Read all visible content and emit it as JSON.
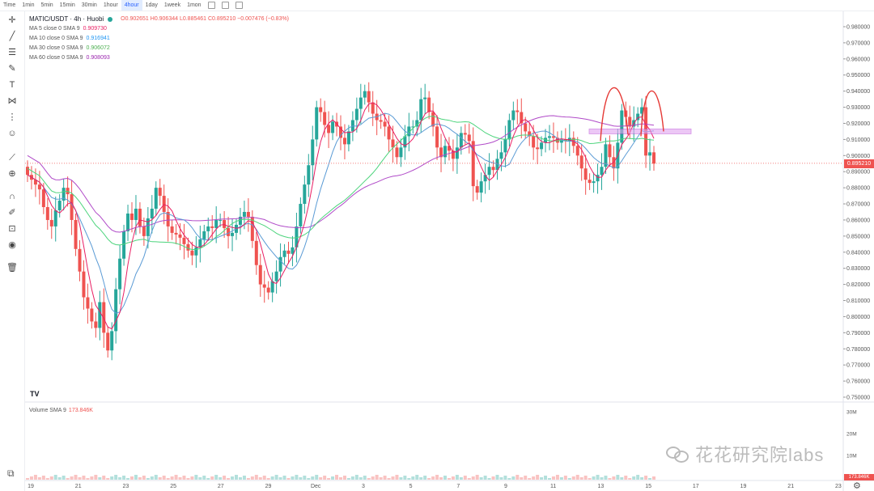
{
  "toolbar": {
    "items": [
      "Time",
      "1min",
      "5min",
      "15min",
      "30min",
      "1hour",
      "4hour",
      "1day",
      "1week",
      "1mon"
    ],
    "active": "4hour"
  },
  "legend": {
    "symbol": "MATIC/USDT · 4h · Huobi",
    "ohlc": "O0.902651 H0.906344 L0.885461 C0.895210 −0.007476 (−0.83%)",
    "mas": [
      {
        "label": "MA 5 close 0 SMA 9",
        "value": "0.909730",
        "color": "#e91e63"
      },
      {
        "label": "MA 10 close 0 SMA 9",
        "value": "0.916941",
        "color": "#2196f3"
      },
      {
        "label": "MA 30 close 0 SMA 9",
        "value": "0.906072",
        "color": "#4caf50"
      },
      {
        "label": "MA 60 close 0 SMA 9",
        "value": "0.908093",
        "color": "#9c27b0"
      }
    ]
  },
  "volume": {
    "label": "Volume SMA 9",
    "value": "173.846K",
    "ticks": [
      "30M",
      "20M",
      "10M"
    ],
    "last": "173.846K"
  },
  "price_axis": {
    "last_price": "0.895210"
  },
  "watermark": "花花研究院labs",
  "logo": "TV",
  "colors": {
    "up": "#26a69a",
    "down": "#ef5350",
    "ma5": "#e91e63",
    "ma10": "#5b9bd5",
    "ma30": "#4cd47c",
    "ma60": "#b04ac8",
    "annot": "#e53935",
    "zone": "#e1a3f0"
  },
  "chart_data": {
    "type": "candlestick",
    "ylim": [
      0.75,
      0.98
    ],
    "y_ticks": [
      "0.980000",
      "0.970000",
      "0.960000",
      "0.950000",
      "0.940000",
      "0.930000",
      "0.920000",
      "0.910000",
      "0.900000",
      "0.890000",
      "0.880000",
      "0.870000",
      "0.860000",
      "0.850000",
      "0.840000",
      "0.830000",
      "0.820000",
      "0.810000",
      "0.800000",
      "0.790000",
      "0.780000",
      "0.770000",
      "0.760000",
      "0.750000"
    ],
    "x_ticks": [
      "19",
      "21",
      "23",
      "25",
      "27",
      "29",
      "Dec",
      "3",
      "5",
      "7",
      "9",
      "11",
      "13",
      "15",
      "17",
      "19",
      "21",
      "23"
    ],
    "candles_close": [
      0.888,
      0.885,
      0.882,
      0.879,
      0.868,
      0.86,
      0.856,
      0.866,
      0.872,
      0.88,
      0.876,
      0.86,
      0.842,
      0.828,
      0.812,
      0.805,
      0.797,
      0.793,
      0.809,
      0.79,
      0.779,
      0.791,
      0.817,
      0.836,
      0.853,
      0.864,
      0.86,
      0.867,
      0.856,
      0.85,
      0.861,
      0.867,
      0.88,
      0.875,
      0.865,
      0.856,
      0.852,
      0.851,
      0.849,
      0.845,
      0.841,
      0.838,
      0.843,
      0.848,
      0.853,
      0.856,
      0.855,
      0.86,
      0.86,
      0.855,
      0.85,
      0.852,
      0.857,
      0.862,
      0.865,
      0.862,
      0.847,
      0.832,
      0.82,
      0.818,
      0.815,
      0.822,
      0.828,
      0.837,
      0.841,
      0.839,
      0.843,
      0.856,
      0.87,
      0.882,
      0.894,
      0.91,
      0.93,
      0.927,
      0.919,
      0.914,
      0.921,
      0.918,
      0.911,
      0.907,
      0.915,
      0.922,
      0.929,
      0.936,
      0.94,
      0.933,
      0.926,
      0.922,
      0.921,
      0.918,
      0.91,
      0.905,
      0.899,
      0.905,
      0.912,
      0.918,
      0.918,
      0.922,
      0.935,
      0.936,
      0.927,
      0.918,
      0.905,
      0.899,
      0.906,
      0.903,
      0.898,
      0.905,
      0.914,
      0.913,
      0.909,
      0.881,
      0.877,
      0.884,
      0.888,
      0.893,
      0.891,
      0.898,
      0.902,
      0.91,
      0.922,
      0.928,
      0.927,
      0.92,
      0.915,
      0.912,
      0.905,
      0.904,
      0.908,
      0.911,
      0.912,
      0.911,
      0.908,
      0.91,
      0.909,
      0.911,
      0.906,
      0.9,
      0.892,
      0.885,
      0.883,
      0.884,
      0.888,
      0.893,
      0.907,
      0.899,
      0.892,
      0.908,
      0.928,
      0.924,
      0.918,
      0.922,
      0.926,
      0.93,
      0.9,
      0.902,
      0.895
    ]
  }
}
